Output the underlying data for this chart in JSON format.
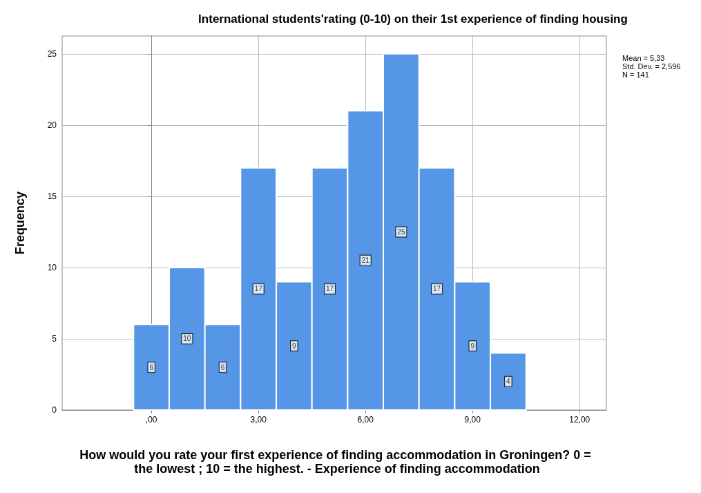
{
  "chart_data": {
    "type": "histogram",
    "title": "International students'rating (0-10) on their 1st experience of finding housing",
    "xlabel": "How would you rate your first experience of finding accommodation in Groningen? 0 = the lowest ; 10 = the highest. - Experience of finding accommodation",
    "ylabel": "Frequency",
    "bins": [
      -0.5,
      0.5,
      1.5,
      2.5,
      3.5,
      4.5,
      5.5,
      6.5,
      7.5,
      8.5,
      9.5,
      10.5
    ],
    "values": [
      6,
      10,
      6,
      17,
      9,
      17,
      21,
      25,
      17,
      9,
      4
    ],
    "color": "#5596e6",
    "xlim": [
      -2.5,
      12.75
    ],
    "xticks": [
      {
        "value": 0,
        "label": ",00"
      },
      {
        "value": 3,
        "label": "3,00"
      },
      {
        "value": 6,
        "label": "6,00"
      },
      {
        "value": 9,
        "label": "9,00"
      },
      {
        "value": 12,
        "label": "12,00"
      }
    ],
    "ylim": [
      0,
      26.25
    ],
    "yticks": [
      0,
      5,
      10,
      15,
      20,
      25
    ],
    "grid": true,
    "data_labels": true,
    "annotations": [
      "Mean = 5,33",
      "Std. Dev. = 2,596",
      "N = 141"
    ]
  }
}
